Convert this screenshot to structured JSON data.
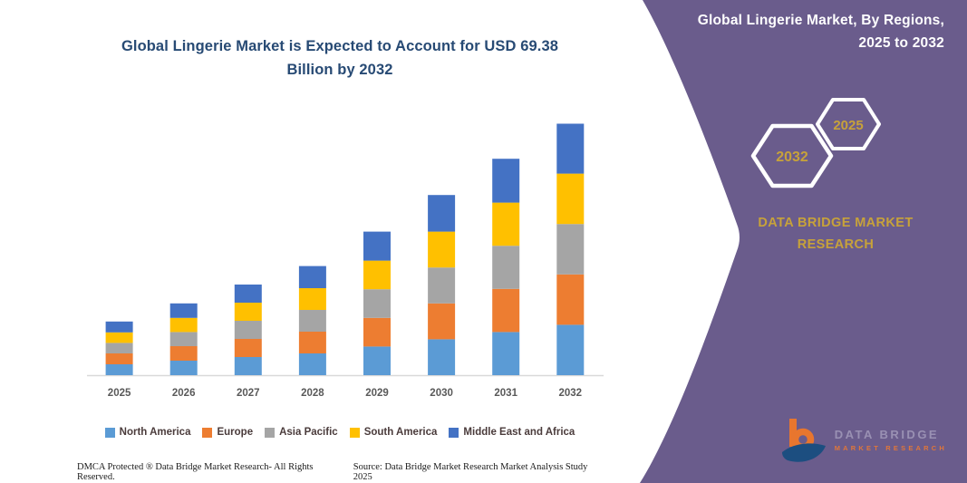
{
  "chart_title": {
    "line1": "Global Lingerie Market is Expected to Account for USD 69.38",
    "line2": "Billion by 2032"
  },
  "chart_data": {
    "type": "bar",
    "subtype": "stacked-column",
    "title": "Global Lingerie Market is Expected to Account for USD 69.38 Billion by 2032",
    "unit": "USD Billion",
    "categories": [
      "2025",
      "2026",
      "2027",
      "2028",
      "2029",
      "2030",
      "2031",
      "2032"
    ],
    "series": [
      {
        "name": "North America",
        "color": "#5B9BD5",
        "values": [
          3.0,
          4.0,
          5.0,
          6.0,
          7.9,
          9.9,
          11.9,
          13.9
        ]
      },
      {
        "name": "Europe",
        "color": "#ED7D31",
        "values": [
          3.0,
          4.0,
          5.0,
          6.0,
          7.9,
          9.9,
          11.9,
          13.9
        ]
      },
      {
        "name": "Asia Pacific",
        "color": "#A5A5A5",
        "values": [
          2.9,
          3.9,
          5.0,
          6.0,
          7.9,
          9.9,
          11.9,
          13.9
        ]
      },
      {
        "name": "South America",
        "color": "#FFC000",
        "values": [
          2.9,
          3.9,
          5.0,
          6.0,
          7.9,
          9.9,
          11.9,
          13.9
        ]
      },
      {
        "name": "Middle East and Africa",
        "color": "#4472C4",
        "values": [
          3.0,
          4.0,
          5.0,
          6.1,
          8.0,
          10.1,
          12.1,
          13.78
        ]
      }
    ],
    "totals": [
      14.8,
      19.8,
      25.0,
      30.1,
      39.6,
      49.7,
      59.7,
      69.38
    ],
    "xlabel": "",
    "ylabel": "",
    "ylim": [
      0,
      72
    ],
    "grid": false,
    "y_axis_shown": false,
    "legend_position": "bottom"
  },
  "footer": {
    "left": "DMCA Protected ® Data Bridge Market Research-  All Rights Reserved.",
    "source": "Source: Data Bridge Market Research  Market Analysis Study 2025"
  },
  "panel": {
    "title_line1": "Global Lingerie Market, By Regions,",
    "title_line2": "2025 to 2032",
    "year_back": "2032",
    "year_front": "2025",
    "brand": "DATA BRIDGE MARKET RESEARCH",
    "logo_text_top": "DATA BRIDGE",
    "logo_text_bottom": "MARKET RESEARCH"
  },
  "colors": {
    "panel_purple": "#6a5c8c",
    "title_navy": "#274a74",
    "gold": "#c7a23a",
    "axis_label_gray": "#595959",
    "legend_text": "#4a3b3b",
    "axis_line": "#d9d9d9",
    "logo_orange": "#e8762e",
    "logo_navy": "#1c4e80"
  }
}
